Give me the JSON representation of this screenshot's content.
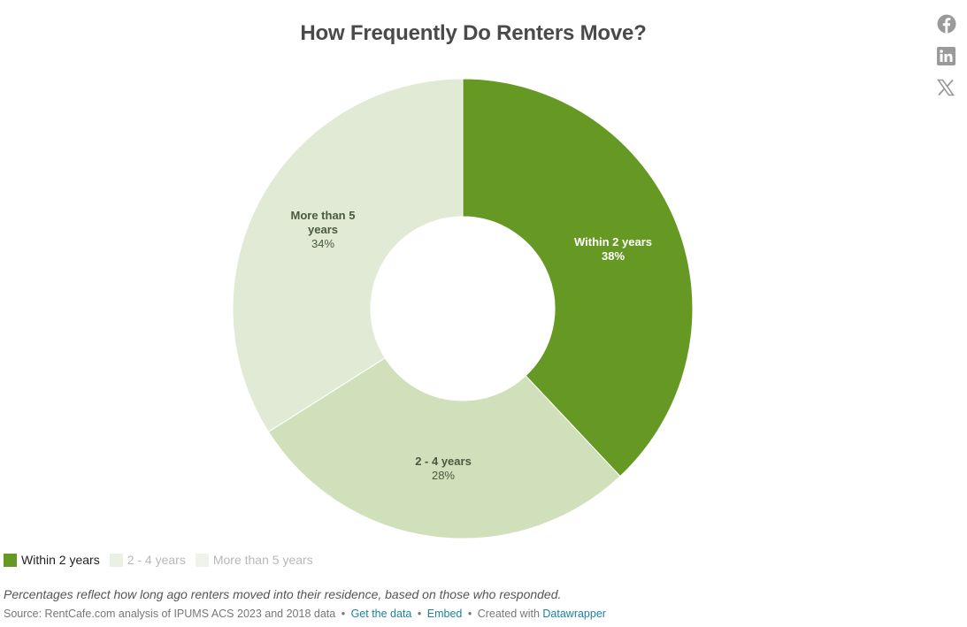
{
  "header": {
    "title": "How Frequently Do Renters Move?"
  },
  "share": [
    {
      "name": "facebook-icon",
      "label": "Facebook"
    },
    {
      "name": "linkedin-icon",
      "label": "LinkedIn"
    },
    {
      "name": "x-icon",
      "label": "X"
    }
  ],
  "chart_data": {
    "type": "pie",
    "variant": "donut",
    "title": "How Frequently Do Renters Move?",
    "categories": [
      "Within 2 years",
      "2 - 4 years",
      "More than 5 years"
    ],
    "values": [
      38,
      28,
      34
    ],
    "unit": "%",
    "colors": [
      "#659924",
      "#cfe0bb",
      "#e0ead4"
    ],
    "start_angle_deg": 0,
    "direction": "clockwise",
    "legend_position": "bottom-left",
    "legend_active": [
      true,
      false,
      false
    ]
  },
  "labels": [
    {
      "name": "Within 2 years",
      "pct": "38%"
    },
    {
      "name": "2 - 4 years",
      "pct": "28%"
    },
    {
      "name": "More than 5 years",
      "pct": "34%"
    }
  ],
  "legend": [
    {
      "label": "Within 2 years",
      "color": "#659924",
      "text_color": "#222222"
    },
    {
      "label": "2 - 4 years",
      "color": "#eaf0e2",
      "text_color": "#b8b8b8"
    },
    {
      "label": "More than 5 years",
      "color": "#f0f3ec",
      "text_color": "#b8b8b8"
    }
  ],
  "footer": {
    "note": "Percentages reflect how long ago renters moved into their residence, based on those who responded.",
    "source": "Source: RentCafe.com analysis of IPUMS ACS 2023 and 2018 data",
    "get_data": "Get the data",
    "embed": "Embed",
    "created_with": "Created with",
    "datawrapper": "Datawrapper",
    "bullet": "•"
  }
}
